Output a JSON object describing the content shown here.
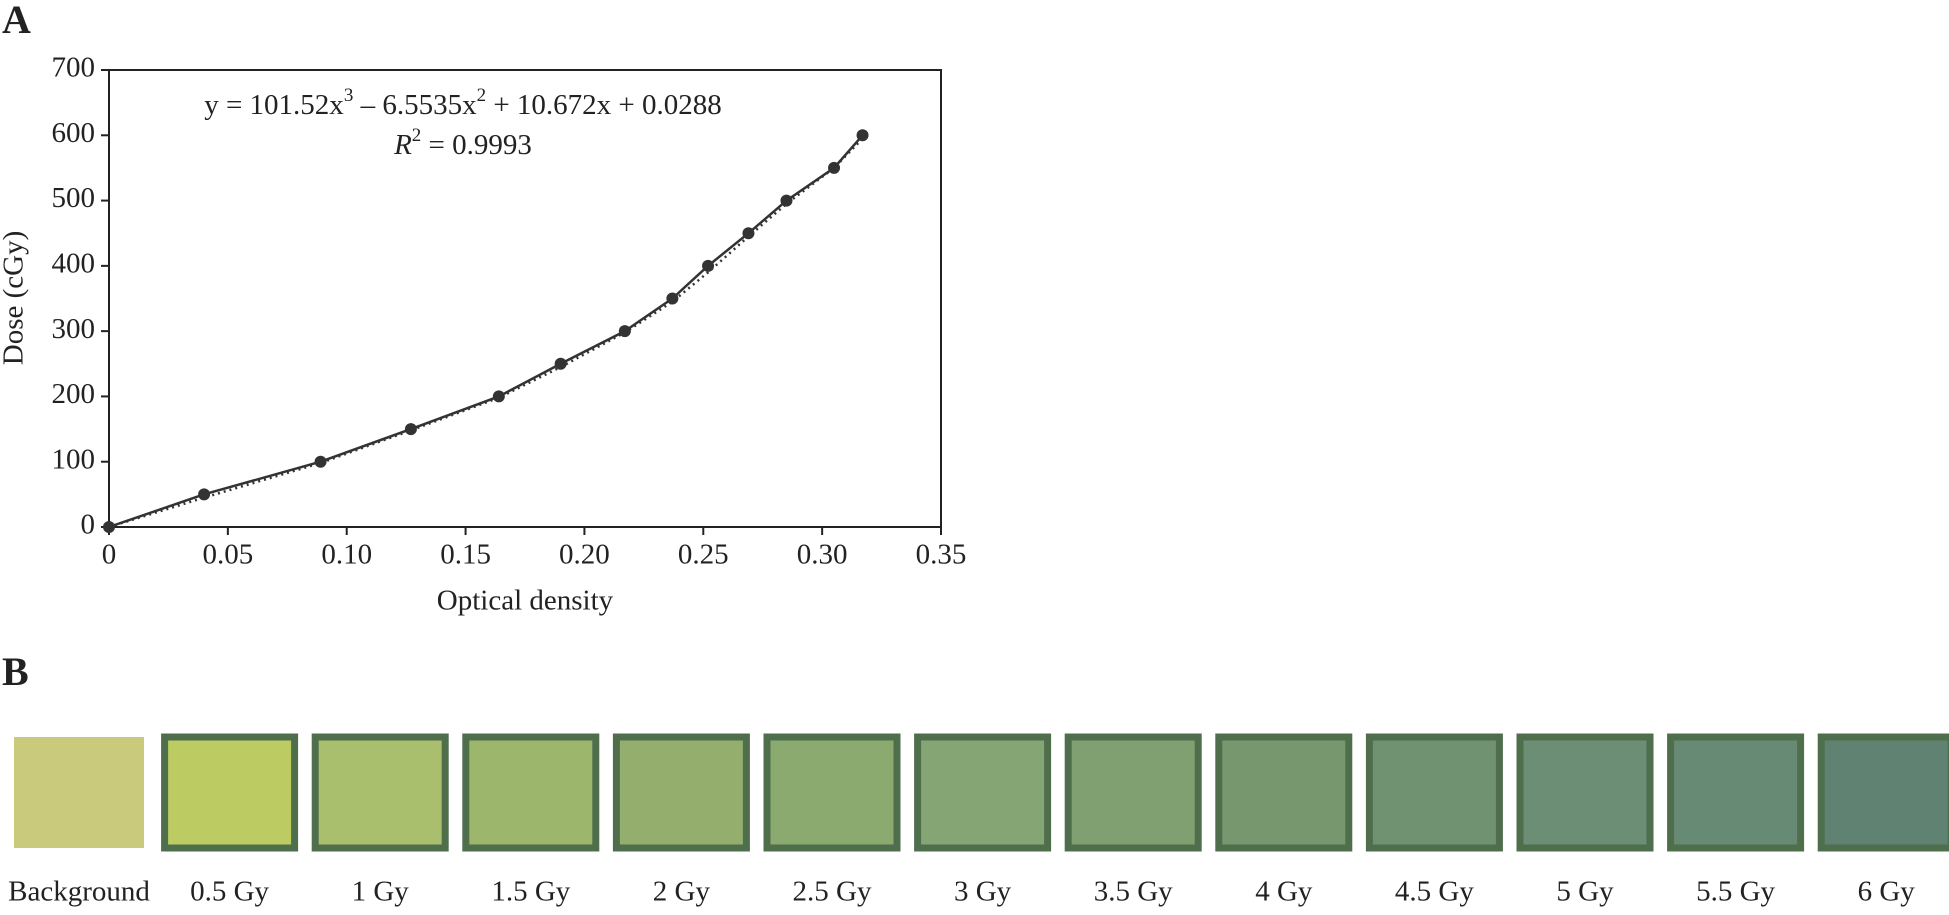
{
  "panels": [
    "A",
    "B"
  ],
  "chart_data": {
    "type": "line",
    "x_label": "Optical density",
    "y_label": "Dose (cGy)",
    "equation": [
      "y = 101.52x",
      "3",
      " – 6.5535x",
      "2",
      " + 10.672x + 0.0288"
    ],
    "r_squared": [
      "R",
      "2",
      " = 0.9993"
    ],
    "x": [
      0,
      0.04,
      0.089,
      0.127,
      0.164,
      0.19,
      0.217,
      0.237,
      0.252,
      0.269,
      0.285,
      0.305,
      0.317
    ],
    "series": [
      {
        "color": "#333333",
        "style": "solid",
        "markers": true,
        "values": [
          0,
          50,
          100,
          150,
          200,
          250,
          300,
          350,
          400,
          450,
          500,
          550,
          600
        ]
      },
      {
        "color": "#333333",
        "style": "dotted",
        "markers": false,
        "values": [
          0,
          45,
          98,
          148,
          198,
          245,
          298,
          345,
          390,
          445,
          495,
          550,
          595
        ]
      }
    ],
    "xlim": [
      0,
      0.35
    ],
    "ylim": [
      0,
      700
    ],
    "xticks": [
      0,
      0.05,
      {
        "value": 0.1,
        "label": "0.10"
      },
      0.15,
      {
        "value": 0.2,
        "label": "0.20"
      },
      0.25,
      {
        "value": 0.3,
        "label": "0.30"
      },
      0.35
    ],
    "yticks": [
      0,
      100,
      200,
      300,
      400,
      500,
      600,
      700
    ],
    "grid": false
  },
  "swatches": [
    {
      "label": "Background",
      "color": "#c9ca7c"
    },
    {
      "label": "0.5 Gy",
      "color": "#bccb62"
    },
    {
      "label": "1 Gy",
      "color": "#aabf6e"
    },
    {
      "label": "1.5 Gy",
      "color": "#9cb66c"
    },
    {
      "label": "2 Gy",
      "color": "#94ae6e"
    },
    {
      "label": "2.5 Gy",
      "color": "#8baa70"
    },
    {
      "label": "3 Gy",
      "color": "#85a574"
    },
    {
      "label": "3.5 Gy",
      "color": "#80a071"
    },
    {
      "label": "4 Gy",
      "color": "#77986f"
    },
    {
      "label": "4.5 Gy",
      "color": "#709271"
    },
    {
      "label": "5 Gy",
      "color": "#6b8e75"
    },
    {
      "label": "5.5 Gy",
      "color": "#668a74"
    },
    {
      "label": "6 Gy",
      "color": "#608273"
    }
  ]
}
